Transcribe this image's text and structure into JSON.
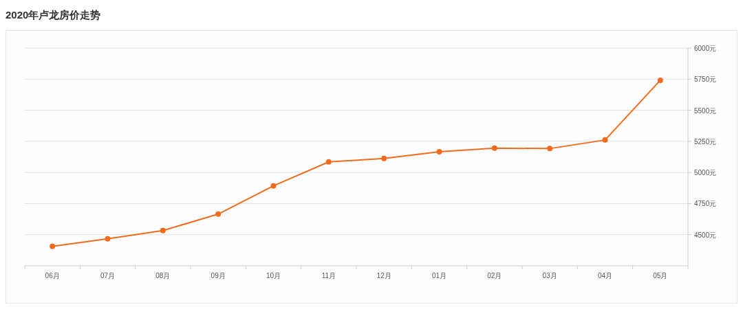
{
  "chart_data": {
    "type": "line",
    "title": "2020年卢龙房价走势",
    "categories": [
      "06月",
      "07月",
      "08月",
      "09月",
      "10月",
      "11月",
      "12月",
      "01月",
      "02月",
      "03月",
      "04月",
      "05月"
    ],
    "series": [
      {
        "color": "#f26a1b",
        "values": [
          4406,
          4467,
          4533,
          4665,
          4892,
          5085,
          5112,
          5167,
          5195,
          5192,
          5261,
          5741
        ]
      }
    ],
    "ylim": [
      4250,
      6000
    ],
    "yticks": [
      {
        "value": 4500,
        "label": "4500元"
      },
      {
        "value": 4750,
        "label": "4750元"
      },
      {
        "value": 5000,
        "label": "5000元"
      },
      {
        "value": 5250,
        "label": "5250元"
      },
      {
        "value": 5500,
        "label": "5500元"
      },
      {
        "value": 5750,
        "label": "5750元"
      },
      {
        "value": 6000,
        "label": "6000元"
      }
    ],
    "grid": "y",
    "marker": "circle",
    "line_style": "solid"
  }
}
